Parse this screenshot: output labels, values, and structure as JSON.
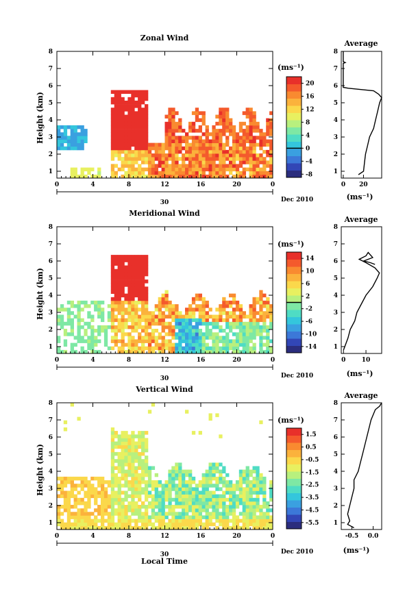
{
  "figure": {
    "date_label": "Dec 2010",
    "day_label": "30",
    "xlabel": "Local Time",
    "unit_label": "(ms⁻¹)",
    "avg_unit_label": "(ms⁻¹)"
  },
  "colors": {
    "scale": [
      "#2b2d7d",
      "#3246b6",
      "#3c78d8",
      "#3aa0e0",
      "#34c6dc",
      "#4fdcc4",
      "#7ee8a4",
      "#b8f07e",
      "#e8f060",
      "#fbd84b",
      "#fbb23c",
      "#f98a30",
      "#f45a2c",
      "#e8302a"
    ]
  },
  "chart_data": [
    {
      "type": "heatmap",
      "id": "zonal",
      "title": "Zonal Wind",
      "ylabel": "Height (km)",
      "xlim": [
        0,
        24
      ],
      "ylim": [
        0.6,
        8
      ],
      "xticks": [
        "0",
        "4",
        "8",
        "12",
        "16",
        "20",
        "0"
      ],
      "yticks": [
        "1",
        "2",
        "3",
        "4",
        "5",
        "6",
        "7",
        "8"
      ],
      "colorbar": {
        "min": -9,
        "max": 22,
        "ticks": [
          "20",
          "16",
          "12",
          "8",
          "4",
          "0",
          "-4",
          "-8"
        ],
        "tick_values": [
          20,
          16,
          12,
          8,
          4,
          0,
          -4,
          -8
        ]
      },
      "average": {
        "title": "Average",
        "xticks": [
          "0",
          "20"
        ],
        "xtick_values": [
          0,
          20
        ],
        "xlim": [
          -2,
          38
        ],
        "profile": [
          [
            0.8,
            15
          ],
          [
            1.0,
            20
          ],
          [
            1.5,
            21
          ],
          [
            2.0,
            22
          ],
          [
            2.5,
            24
          ],
          [
            3.0,
            26
          ],
          [
            3.5,
            30
          ],
          [
            4.0,
            32
          ],
          [
            4.5,
            34
          ],
          [
            5.0,
            36
          ],
          [
            5.3,
            38
          ],
          [
            5.5,
            35
          ],
          [
            5.7,
            30
          ],
          [
            5.85,
            5
          ],
          [
            5.9,
            0
          ],
          [
            7.3,
            0
          ],
          [
            7.35,
            2
          ],
          [
            7.4,
            0
          ],
          [
            8,
            0
          ]
        ]
      }
    },
    {
      "type": "heatmap",
      "id": "meridional",
      "title": "Meridional Wind",
      "ylabel": "Height (km)",
      "xlim": [
        0,
        24
      ],
      "ylim": [
        0.6,
        8
      ],
      "xticks": [
        "0",
        "4",
        "8",
        "12",
        "16",
        "20",
        "0"
      ],
      "yticks": [
        "1",
        "2",
        "3",
        "4",
        "5",
        "6",
        "7",
        "8"
      ],
      "colorbar": {
        "min": -16,
        "max": 16,
        "ticks": [
          "14",
          "10",
          "6",
          "2",
          "-2",
          "-6",
          "-10",
          "-14"
        ],
        "tick_values": [
          14,
          10,
          6,
          2,
          -2,
          -6,
          -10,
          -14
        ]
      },
      "average": {
        "title": "Average",
        "xticks": [
          "0",
          "10"
        ],
        "xtick_values": [
          0,
          10
        ],
        "xlim": [
          -1,
          17
        ],
        "profile": [
          [
            0.8,
            0
          ],
          [
            1.5,
            2
          ],
          [
            2.0,
            3
          ],
          [
            2.5,
            5
          ],
          [
            3.0,
            6
          ],
          [
            3.5,
            8
          ],
          [
            4.0,
            10
          ],
          [
            4.5,
            13
          ],
          [
            5.0,
            15
          ],
          [
            5.3,
            16
          ],
          [
            5.6,
            14
          ],
          [
            5.9,
            10
          ],
          [
            6.1,
            7
          ],
          [
            6.3,
            10
          ],
          [
            6.5,
            11
          ],
          [
            6.2,
            13
          ],
          [
            6.0,
            9
          ],
          [
            5.9,
            12
          ],
          [
            5.8,
            14
          ]
        ]
      }
    },
    {
      "type": "heatmap",
      "id": "vertical",
      "title": "Vertical Wind",
      "ylabel": "Height (km)",
      "xlabel": "Local Time",
      "xlim": [
        0,
        24
      ],
      "ylim": [
        0.6,
        8
      ],
      "xticks": [
        "0",
        "4",
        "8",
        "12",
        "16",
        "20",
        "0"
      ],
      "yticks": [
        "1",
        "2",
        "3",
        "4",
        "5",
        "6",
        "7",
        "8"
      ],
      "colorbar": {
        "min": -6.0,
        "max": 2.0,
        "ticks": [
          "1.5",
          "0.5",
          "-0.5",
          "-1.5",
          "-2.5",
          "-3.5",
          "-4.5",
          "-5.5"
        ],
        "tick_values": [
          1.5,
          0.5,
          -0.5,
          -1.5,
          -2.5,
          -3.5,
          -4.5,
          -5.5
        ]
      },
      "average": {
        "title": "Average",
        "xticks": [
          "-0.5",
          "0.0"
        ],
        "xtick_values": [
          -0.5,
          0.0
        ],
        "xlim": [
          -0.75,
          0.2
        ],
        "profile": [
          [
            0.7,
            -0.45
          ],
          [
            0.9,
            -0.6
          ],
          [
            1.1,
            -0.55
          ],
          [
            1.5,
            -0.6
          ],
          [
            2.0,
            -0.55
          ],
          [
            2.5,
            -0.5
          ],
          [
            3.0,
            -0.45
          ],
          [
            3.5,
            -0.45
          ],
          [
            4.0,
            -0.35
          ],
          [
            4.5,
            -0.3
          ],
          [
            5.0,
            -0.25
          ],
          [
            5.5,
            -0.2
          ],
          [
            6.0,
            -0.15
          ],
          [
            6.5,
            -0.1
          ],
          [
            7.0,
            -0.05
          ],
          [
            7.3,
            0.0
          ],
          [
            7.6,
            0.05
          ],
          [
            7.8,
            0.15
          ],
          [
            8.0,
            0.2
          ]
        ]
      }
    }
  ]
}
